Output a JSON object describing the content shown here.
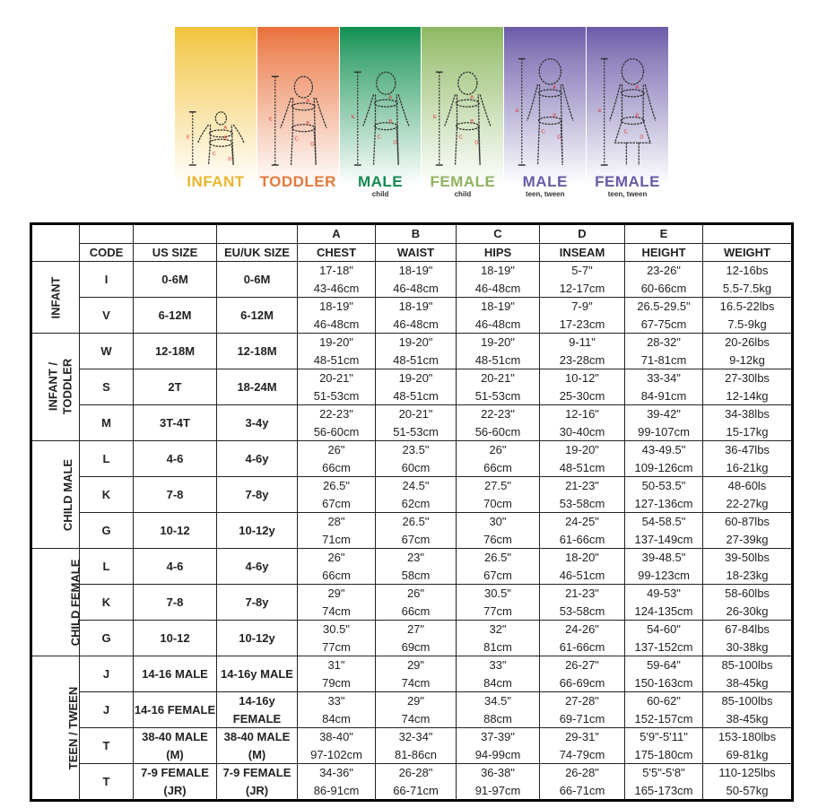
{
  "banner": {
    "panels": [
      {
        "label": "INFANT",
        "sub": "",
        "color": "#e8b730",
        "bg": "#f2c23a",
        "icon": "infant-figure-icon"
      },
      {
        "label": "TODDLER",
        "sub": "",
        "color": "#e57a3c",
        "bg": "#e9703a",
        "icon": "toddler-figure-icon"
      },
      {
        "label": "MALE",
        "sub": "child",
        "color": "#138a52",
        "bg": "#0f8f50",
        "icon": "child-male-figure-icon"
      },
      {
        "label": "FEMALE",
        "sub": "child",
        "color": "#8fb462",
        "bg": "#8cb860",
        "icon": "child-female-figure-icon"
      },
      {
        "label": "MALE",
        "sub": "teen, tween",
        "color": "#6a5aa6",
        "bg": "#6b5ba8",
        "icon": "teen-male-figure-icon"
      },
      {
        "label": "FEMALE",
        "sub": "teen, tween",
        "color": "#6a5aa6",
        "bg": "#6b5ba8",
        "icon": "teen-female-figure-icon"
      }
    ]
  },
  "table": {
    "letters": [
      "A",
      "B",
      "C",
      "D",
      "E"
    ],
    "headers": [
      "CODE",
      "US SIZE",
      "EU/UK SIZE",
      "CHEST",
      "WAIST",
      "HIPS",
      "INSEAM",
      "HEIGHT",
      "WEIGHT"
    ],
    "groups": [
      {
        "label": "INFANT",
        "rows": [
          [
            "I",
            "0-6M",
            "0-6M",
            [
              "17-18\"",
              "43-46cm"
            ],
            [
              "18-19\"",
              "46-48cm"
            ],
            [
              "18-19\"",
              "46-48cm"
            ],
            [
              "5-7\"",
              "12-17cm"
            ],
            [
              "23-26\"",
              "60-66cm"
            ],
            [
              "12-16bs",
              "5.5-7.5kg"
            ]
          ],
          [
            "V",
            "6-12M",
            "6-12M",
            [
              "18-19\"",
              "46-48cm"
            ],
            [
              "18-19\"",
              "46-48cm"
            ],
            [
              "18-19\"",
              "46-48cm"
            ],
            [
              "7-9\"",
              "17-23cm"
            ],
            [
              "26.5-29.5\"",
              "67-75cm"
            ],
            [
              "16.5-22lbs",
              "7.5-9kg"
            ]
          ]
        ]
      },
      {
        "label": "INFANT /\nTODDLER",
        "rows": [
          [
            "W",
            "12-18M",
            "12-18M",
            [
              "19-20\"",
              "48-51cm"
            ],
            [
              "19-20\"",
              "48-51cm"
            ],
            [
              "19-20\"",
              "48-51cm"
            ],
            [
              "9-11\"",
              "23-28cm"
            ],
            [
              "28-32\"",
              "71-81cm"
            ],
            [
              "20-26lbs",
              "9-12kg"
            ]
          ],
          [
            "S",
            "2T",
            "18-24M",
            [
              "20-21\"",
              "51-53cm"
            ],
            [
              "19-20\"",
              "48-51cm"
            ],
            [
              "20-21\"",
              "51-53cm"
            ],
            [
              "10-12\"",
              "25-30cm"
            ],
            [
              "33-34\"",
              "84-91cm"
            ],
            [
              "27-30lbs",
              "12-14kg"
            ]
          ],
          [
            "M",
            "3T-4T",
            "3-4y",
            [
              "22-23\"",
              "56-60cm"
            ],
            [
              "20-21\"",
              "51-53cm"
            ],
            [
              "22-23\"",
              "56-60cm"
            ],
            [
              "12-16\"",
              "30-40cm"
            ],
            [
              "39-42\"",
              "99-107cm"
            ],
            [
              "34-38lbs",
              "15-17kg"
            ]
          ]
        ]
      },
      {
        "label": "CHILD MALE",
        "rows": [
          [
            "L",
            "4-6",
            "4-6y",
            [
              "26\"",
              "66cm"
            ],
            [
              "23.5\"",
              "60cm"
            ],
            [
              "26\"",
              "66cm"
            ],
            [
              "19-20\"",
              "48-51cm"
            ],
            [
              "43-49.5\"",
              "109-126cm"
            ],
            [
              "36-47lbs",
              "16-21kg"
            ]
          ],
          [
            "K",
            "7-8",
            "7-8y",
            [
              "26.5\"",
              "67cm"
            ],
            [
              "24.5\"",
              "62cm"
            ],
            [
              "27.5\"",
              "70cm"
            ],
            [
              "21-23\"",
              "53-58cm"
            ],
            [
              "50-53.5\"",
              "127-136cm"
            ],
            [
              "48-60ls",
              "22-27kg"
            ]
          ],
          [
            "G",
            "10-12",
            "10-12y",
            [
              "28\"",
              "71cm"
            ],
            [
              "26.5\"",
              "67cm"
            ],
            [
              "30\"",
              "76cm"
            ],
            [
              "24-25\"",
              "61-66cm"
            ],
            [
              "54-58.5\"",
              "137-149cm"
            ],
            [
              "60-87lbs",
              "27-39kg"
            ]
          ]
        ]
      },
      {
        "label": "CHILD FEMALE",
        "rows": [
          [
            "L",
            "4-6",
            "4-6y",
            [
              "26\"",
              "66cm"
            ],
            [
              "23\"",
              "58cm"
            ],
            [
              "26.5\"",
              "67cm"
            ],
            [
              "18-20\"",
              "46-51cm"
            ],
            [
              "39-48.5\"",
              "99-123cm"
            ],
            [
              "39-50lbs",
              "18-23kg"
            ]
          ],
          [
            "K",
            "7-8",
            "7-8y",
            [
              "29\"",
              "74cm"
            ],
            [
              "26\"",
              "66cm"
            ],
            [
              "30.5\"",
              "77cm"
            ],
            [
              "21-23\"",
              "53-58cm"
            ],
            [
              "49-53\"",
              "124-135cm"
            ],
            [
              "58-60lbs",
              "26-30kg"
            ]
          ],
          [
            "G",
            "10-12",
            "10-12y",
            [
              "30.5\"",
              "77cm"
            ],
            [
              "27\"",
              "69cm"
            ],
            [
              "32\"",
              "81cm"
            ],
            [
              "24-26\"",
              "61-66cm"
            ],
            [
              "54-60\"",
              "137-152cm"
            ],
            [
              "67-84lbs",
              "30-38kg"
            ]
          ]
        ]
      },
      {
        "label": "TEEN / TWEEN",
        "rows": [
          [
            "J",
            "14-16 MALE",
            "14-16y MALE",
            [
              "31\"",
              "79cm"
            ],
            [
              "29\"",
              "74cm"
            ],
            [
              "33\"",
              "84cm"
            ],
            [
              "26-27\"",
              "66-69cm"
            ],
            [
              "59-64\"",
              "150-163cm"
            ],
            [
              "85-100lbs",
              "38-45kg"
            ]
          ],
          [
            "J",
            "14-16 FEMALE",
            "14-16y FEMALE",
            [
              "33\"",
              "84cm"
            ],
            [
              "29\"",
              "74cm"
            ],
            [
              "34.5\"",
              "88cm"
            ],
            [
              "27-28\"",
              "69-71cm"
            ],
            [
              "60-62\"",
              "152-157cm"
            ],
            [
              "85-100lbs",
              "38-45kg"
            ]
          ],
          [
            "T",
            "38-40 MALE (M)",
            "38-40 MALE (M)",
            [
              "38-40\"",
              "97-102cm"
            ],
            [
              "32-34\"",
              "81-86cn"
            ],
            [
              "37-39\"",
              "94-99cm"
            ],
            [
              "29-31\"",
              "74-79cm"
            ],
            [
              "5'9\"-5'11\"",
              "175-180cm"
            ],
            [
              "153-180lbs",
              "69-81kg"
            ]
          ],
          [
            "T",
            "7-9 FEMALE (JR)",
            "7-9 FEMALE (JR)",
            [
              "34-36\"",
              "86-91cm"
            ],
            [
              "26-28\"",
              "66-71cm"
            ],
            [
              "36-38\"",
              "91-97cm"
            ],
            [
              "26-28\"",
              "66-71cm"
            ],
            [
              "5'5\"-5'8\"",
              "165-173cm"
            ],
            [
              "110-125lbs",
              "50-57kg"
            ]
          ]
        ]
      }
    ]
  }
}
